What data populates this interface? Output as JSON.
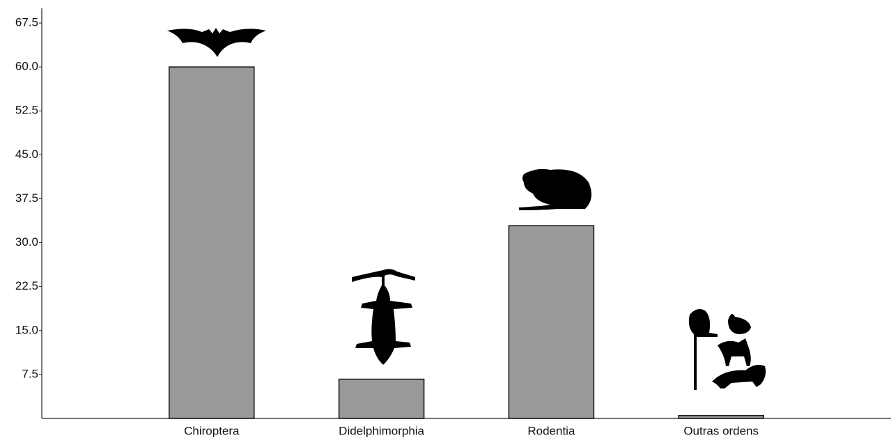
{
  "chart_data": {
    "type": "bar",
    "categories": [
      "Chiroptera",
      "Didelphimorphia",
      "Rodentia",
      "Outras ordens"
    ],
    "values": [
      60,
      6.7,
      32.9,
      0.5
    ],
    "color": "#999999",
    "ylim": [
      0,
      70
    ],
    "yticks": [
      7.5,
      {
        "value": 15,
        "label": "15.0"
      },
      22.5,
      {
        "value": 30,
        "label": "30.0"
      },
      37.5,
      {
        "value": 45,
        "label": "45.0"
      },
      52.5,
      {
        "value": 60,
        "label": "60.0"
      },
      67.5
    ]
  }
}
